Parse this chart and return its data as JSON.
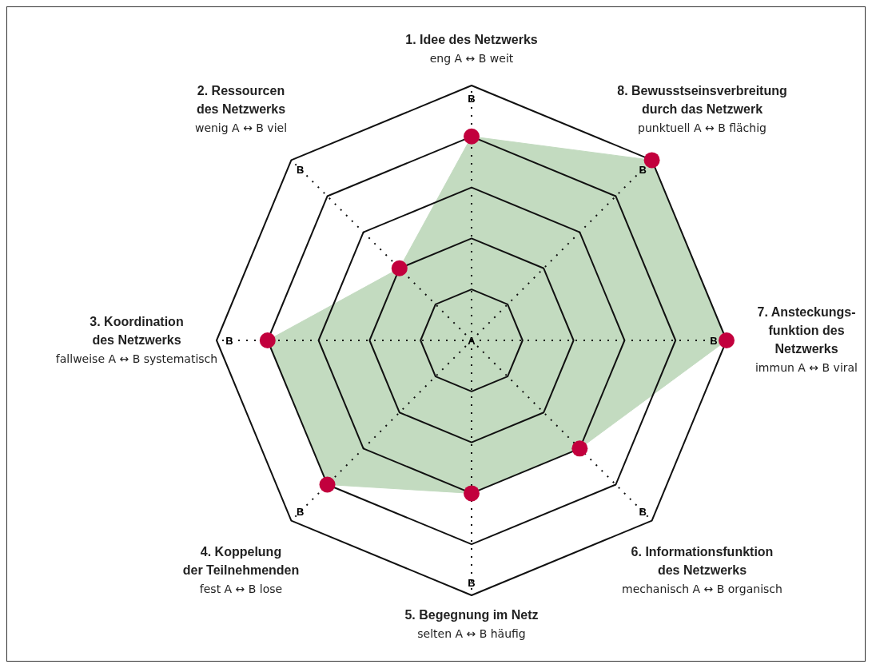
{
  "chart_data": {
    "type": "radar",
    "categories": [
      "1. Idee des Netzwerks\neng A ↔ B weit",
      "8. Bewusstseinsverbreitung\ndurch das Netzwerk\npunktuell A ↔ B flächig",
      "7. Ansteckungs-\nfunktion des\nNetzwerks\nimmun A ↔ B viral",
      "6. Informationsfunktion\ndes Netzwerks\nmechanisch A ↔ B organisch",
      "5. Begegnung im Netz\nselten A ↔ B häufig",
      "4. Koppelung\nder Teilnehmenden\nfest A ↔ B lose",
      "3. Koordination\ndes Netzwerks\nfallweise A ↔ B systematisch",
      "2. Ressourcen\ndes Netzwerks\nwenig A ↔ B viel"
    ],
    "ylim": [
      0,
      1
    ],
    "yticks": [
      {
        "value": 0,
        "label": "A"
      },
      {
        "value": 1,
        "label": "B"
      }
    ],
    "grid": true,
    "marker": "circle",
    "series": [
      {
        "color": "#c3dbc0",
        "colors": [
          "#c2003d",
          "#c2003d",
          "#c2003d",
          "#c2003d",
          "#c2003d",
          "#c2003d",
          "#c2003d",
          "#c2003d"
        ],
        "values": [
          0.8,
          1,
          1,
          0.6,
          0.6,
          0.8,
          0.8,
          0.4
        ]
      }
    ]
  }
}
